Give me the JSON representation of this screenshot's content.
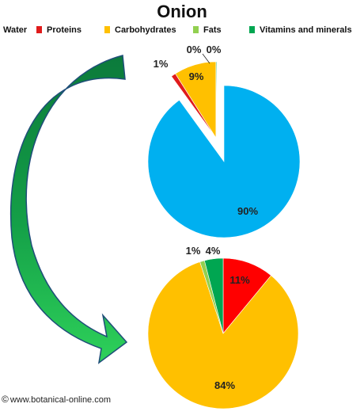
{
  "chart_data": {
    "title": "Onion",
    "legend": [
      {
        "name": "Water",
        "color": "#00b0f0"
      },
      {
        "name": "Proteins",
        "color": "#e01b1b"
      },
      {
        "name": "Carbohydrates",
        "color": "#ffc000"
      },
      {
        "name": "Fats",
        "color": "#92d050"
      },
      {
        "name": "Vitamins and minerals",
        "color": "#00a651"
      }
    ],
    "charts": [
      {
        "type": "pie",
        "slices": [
          {
            "name": "Water",
            "value": 90,
            "label": "90%",
            "color": "#00b0f0"
          },
          {
            "name": "Proteins",
            "value": 1,
            "label": "1%",
            "color": "#e01b1b"
          },
          {
            "name": "Carbohydrates",
            "value": 9,
            "label": "9%",
            "color": "#ffc000"
          },
          {
            "name": "Fats",
            "value": 0,
            "label": "0%",
            "color": "#92d050"
          },
          {
            "name": "Vitamins and minerals",
            "value": 0,
            "label": "0%",
            "color": "#00a651"
          }
        ],
        "exploded": [
          "Proteins",
          "Carbohydrates",
          "Fats",
          "Vitamins and minerals"
        ]
      },
      {
        "type": "pie",
        "slices": [
          {
            "name": "Proteins",
            "value": 11,
            "label": "11%",
            "color": "#ff0000"
          },
          {
            "name": "Carbohydrates",
            "value": 84,
            "label": "84%",
            "color": "#ffc000"
          },
          {
            "name": "Fats",
            "value": 1,
            "label": "1%",
            "color": "#92d050"
          },
          {
            "name": "Vitamins and minerals",
            "value": 4,
            "label": "4%",
            "color": "#00a651"
          }
        ]
      }
    ]
  },
  "footer": {
    "copyright": "©",
    "text": "www.botanical-online.com"
  }
}
